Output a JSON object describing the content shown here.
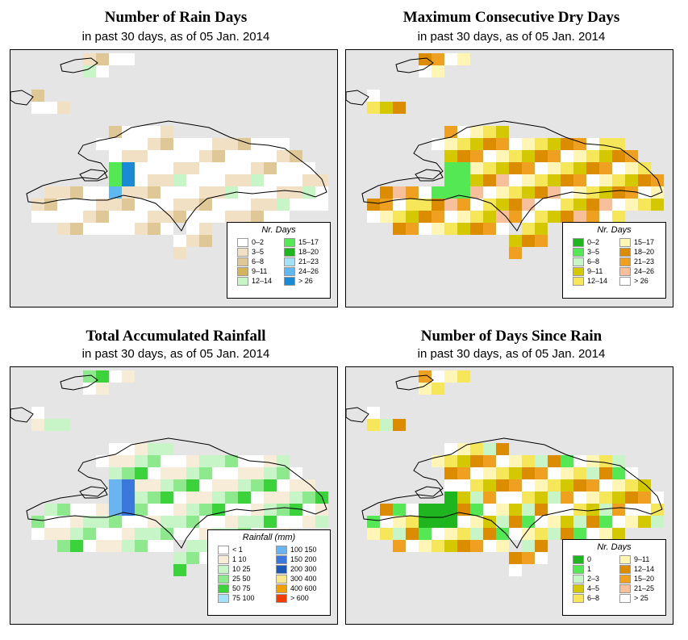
{
  "panels": [
    {
      "title": "Number of Rain Days",
      "subtitle": "in past 30 days, as of  05 Jan. 2014",
      "legend": {
        "title": "Nr. Days",
        "items": [
          {
            "label": "0–2",
            "color": "#ffffff"
          },
          {
            "label": "3–5",
            "color": "#f1e0c4"
          },
          {
            "label": "6–8",
            "color": "#e0c896"
          },
          {
            "label": "9–11",
            "color": "#d4b45a"
          },
          {
            "label": "12–14",
            "color": "#c8f5c8"
          },
          {
            "label": "15–17",
            "color": "#55e855"
          },
          {
            "label": "18–20",
            "color": "#1fb51f"
          },
          {
            "label": "21–23",
            "color": "#a6e2f7"
          },
          {
            "label": "24–26",
            "color": "#60b8f0"
          },
          {
            "label": "> 26",
            "color": "#1a8ad4"
          }
        ]
      }
    },
    {
      "title": "Maximum Consecutive Dry Days",
      "subtitle": "in past 30 days, as of  05 Jan. 2014",
      "legend": {
        "title": "Nr. Days",
        "items": [
          {
            "label": "0–2",
            "color": "#1fb51f"
          },
          {
            "label": "3–5",
            "color": "#55e855"
          },
          {
            "label": "6–8",
            "color": "#c8f5c8"
          },
          {
            "label": "9–11",
            "color": "#d4c800"
          },
          {
            "label": "12–14",
            "color": "#f5e65a"
          },
          {
            "label": "15–17",
            "color": "#fff5b4"
          },
          {
            "label": "18–20",
            "color": "#dc8c00"
          },
          {
            "label": "21–23",
            "color": "#f0a020"
          },
          {
            "label": "24–26",
            "color": "#f8c09a"
          },
          {
            "label": "> 26",
            "color": "#ffffff"
          }
        ]
      }
    },
    {
      "title": "Total Accumulated Rainfall",
      "subtitle": "in past 30 days, as of  05 Jan. 2014",
      "legend": {
        "title": "Rainfall (mm)",
        "items": [
          {
            "label": "< 1",
            "color": "#ffffff"
          },
          {
            "label": "1    10",
            "color": "#f6ecd8"
          },
          {
            "label": "10    25",
            "color": "#c8f5c8"
          },
          {
            "label": "25    50",
            "color": "#8ee88e"
          },
          {
            "label": "50    75",
            "color": "#3cd23c"
          },
          {
            "label": "75  100",
            "color": "#a6e2f7"
          },
          {
            "label": "100  150",
            "color": "#6ab4f0"
          },
          {
            "label": "150  200",
            "color": "#3c78dc"
          },
          {
            "label": "200  300",
            "color": "#1a5ab4"
          },
          {
            "label": "300  400",
            "color": "#f8e68c"
          },
          {
            "label": "400  600",
            "color": "#f0a000"
          },
          {
            "label": "> 600",
            "color": "#f03c00"
          }
        ]
      }
    },
    {
      "title": "Number of Days Since Rain",
      "subtitle": "in past 30 days, as of  05 Jan. 2014",
      "legend": {
        "title": "Nr. Days",
        "items": [
          {
            "label": "0",
            "color": "#1fb51f"
          },
          {
            "label": "1",
            "color": "#55e855"
          },
          {
            "label": "2–3",
            "color": "#c8f5c8"
          },
          {
            "label": "4–5",
            "color": "#d4c800"
          },
          {
            "label": "6–8",
            "color": "#f5e65a"
          },
          {
            "label": "9–11",
            "color": "#fff5b4"
          },
          {
            "label": "12–14",
            "color": "#dc8c00"
          },
          {
            "label": "15–20",
            "color": "#f0a020"
          },
          {
            "label": "21–25",
            "color": "#f8c09a"
          },
          {
            "label": "> 25",
            "color": "#ffffff"
          }
        ]
      }
    }
  ]
}
